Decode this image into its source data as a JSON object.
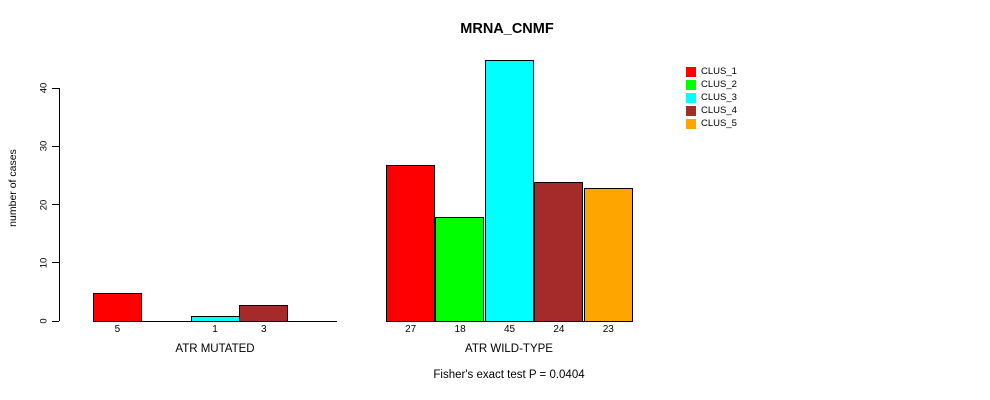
{
  "title": "MRNA_CNMF",
  "chart_data": {
    "type": "bar",
    "title": "MRNA_CNMF",
    "xlabel": "",
    "ylabel": "number of cases",
    "ylim": [
      0,
      45
    ],
    "yticks": [
      0,
      10,
      20,
      30,
      40
    ],
    "grid": false,
    "legend_position": "right",
    "series_names": [
      "CLUS_1",
      "CLUS_2",
      "CLUS_3",
      "CLUS_4",
      "CLUS_5"
    ],
    "series_colors": [
      "#FF0000",
      "#00FF00",
      "#00FFFF",
      "#A52A2A",
      "#FFA500"
    ],
    "groups": [
      {
        "label": "ATR MUTATED",
        "values": [
          5,
          0,
          1,
          3,
          0
        ],
        "bar_labels": [
          "5",
          "",
          "1",
          "3",
          ""
        ]
      },
      {
        "label": "ATR WILD-TYPE",
        "values": [
          27,
          18,
          45,
          24,
          23
        ],
        "bar_labels": [
          "27",
          "18",
          "45",
          "24",
          "23"
        ]
      }
    ],
    "footnote": "Fisher's exact test P = 0.0404"
  }
}
